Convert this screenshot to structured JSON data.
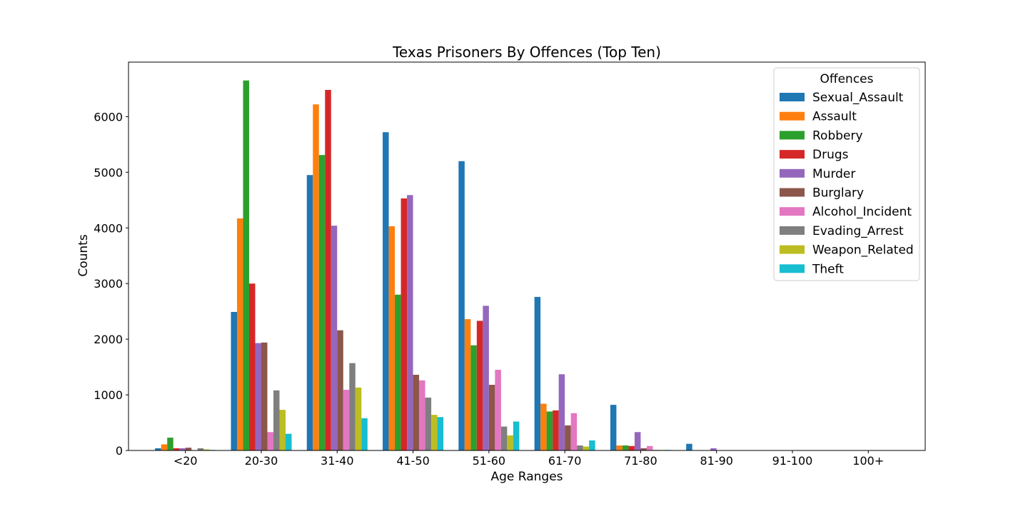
{
  "chart_data": {
    "type": "bar",
    "title": "Texas Prisoners By Offences (Top Ten)",
    "xlabel": "Age Ranges",
    "ylabel": "Counts",
    "ylim": [
      0,
      6980
    ],
    "yticks": [
      0,
      1000,
      2000,
      3000,
      4000,
      5000,
      6000
    ],
    "grid": false,
    "legend": {
      "title": "Offences",
      "position": "top-right"
    },
    "categories": [
      "<20",
      "20-30",
      "31-40",
      "41-50",
      "51-60",
      "61-70",
      "71-80",
      "81-90",
      "91-100",
      "100+"
    ],
    "series": [
      {
        "name": "Sexual_Assault",
        "color": "#1f77b4",
        "values": [
          40,
          2490,
          4950,
          5720,
          5200,
          2760,
          820,
          120,
          0,
          0
        ]
      },
      {
        "name": "Assault",
        "color": "#ff7f0e",
        "values": [
          110,
          4170,
          6220,
          4030,
          2360,
          840,
          90,
          5,
          0,
          0
        ]
      },
      {
        "name": "Robbery",
        "color": "#2ca02c",
        "values": [
          230,
          6650,
          5310,
          2800,
          1890,
          700,
          90,
          5,
          0,
          0
        ]
      },
      {
        "name": "Drugs",
        "color": "#d62728",
        "values": [
          40,
          3000,
          6480,
          4530,
          2330,
          720,
          80,
          5,
          0,
          0
        ]
      },
      {
        "name": "Murder",
        "color": "#9467bd",
        "values": [
          40,
          1930,
          4040,
          4590,
          2600,
          1370,
          330,
          40,
          0,
          0
        ]
      },
      {
        "name": "Burglary",
        "color": "#8c564b",
        "values": [
          50,
          1940,
          2160,
          1360,
          1180,
          450,
          40,
          5,
          0,
          0
        ]
      },
      {
        "name": "Alcohol_Incident",
        "color": "#e377c2",
        "values": [
          5,
          330,
          1090,
          1260,
          1450,
          670,
          80,
          5,
          0,
          0
        ]
      },
      {
        "name": "Evading_Arrest",
        "color": "#7f7f7f",
        "values": [
          40,
          1080,
          1570,
          950,
          430,
          90,
          10,
          0,
          0,
          0
        ]
      },
      {
        "name": "Weapon_Related",
        "color": "#bcbd22",
        "values": [
          20,
          730,
          1130,
          640,
          270,
          70,
          10,
          0,
          0,
          0
        ]
      },
      {
        "name": "Theft",
        "color": "#17becf",
        "values": [
          10,
          300,
          580,
          600,
          520,
          180,
          10,
          0,
          0,
          0
        ]
      }
    ]
  }
}
